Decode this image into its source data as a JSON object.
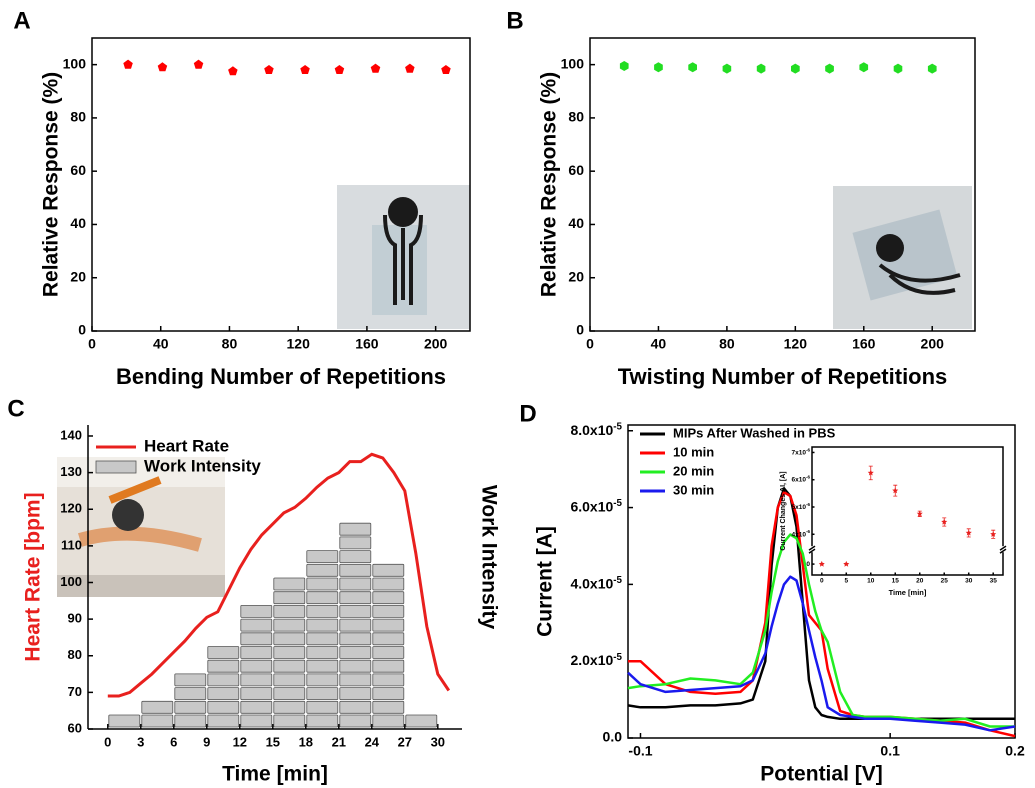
{
  "chart_data": [
    {
      "type": "scatter",
      "panel": "A",
      "xlabel": "Bending Number of Repetitions",
      "ylabel": "Relative Response (%)",
      "x": [
        21,
        41,
        62,
        82,
        103,
        124,
        144,
        165,
        185,
        206
      ],
      "values": [
        100,
        99,
        100,
        97.5,
        98,
        98,
        98,
        98.5,
        98.5,
        98
      ],
      "color": "#ff0000",
      "marker": "pentagon",
      "xlim": [
        0,
        220
      ],
      "ylim": [
        0,
        110
      ],
      "xticks": [
        0,
        40,
        80,
        120,
        160,
        200
      ],
      "yticks": [
        0,
        20,
        40,
        60,
        80,
        100
      ]
    },
    {
      "type": "scatter",
      "panel": "B",
      "xlabel": "Twisting Number of Repetitions",
      "ylabel": "Relative Response (%)",
      "x": [
        20,
        40,
        60,
        80,
        100,
        120,
        140,
        160,
        180,
        200
      ],
      "values": [
        99.5,
        99,
        99,
        98.5,
        98.5,
        98.5,
        98.5,
        99,
        98.5,
        98.5
      ],
      "color": "#22dd22",
      "marker": "hexagon",
      "xlim": [
        0,
        225
      ],
      "ylim": [
        0,
        110
      ],
      "xticks": [
        0,
        40,
        80,
        120,
        160,
        200
      ],
      "yticks": [
        0,
        20,
        40,
        60,
        80,
        100
      ]
    },
    {
      "type": "combo",
      "panel": "C",
      "xlabel": "Time [min]",
      "ylabel": "Heart Rate [bpm]",
      "y2label": "Work Intensity",
      "xlim": [
        -1.8,
        32.2
      ],
      "ylim": [
        60,
        143
      ],
      "xticks": [
        0,
        3,
        6,
        9,
        12,
        15,
        18,
        21,
        24,
        27,
        30
      ],
      "yticks": [
        60,
        70,
        80,
        90,
        100,
        110,
        120,
        130,
        140
      ],
      "legend": "upper left",
      "series": [
        {
          "name": "Heart Rate",
          "type": "line",
          "color": "#e8201e",
          "x": [
            0,
            1,
            2,
            3,
            4,
            5,
            6,
            7,
            8,
            9,
            10,
            11,
            12,
            13,
            14,
            15,
            16,
            17,
            18,
            19,
            20,
            21,
            22,
            23,
            24,
            25,
            26,
            27,
            28,
            29,
            30,
            31
          ],
          "values": [
            69,
            69,
            70,
            72.5,
            75,
            78,
            81,
            84,
            87.5,
            90.5,
            92,
            98,
            104,
            109,
            113,
            116,
            119,
            120.5,
            123,
            126,
            128.5,
            130,
            133,
            133,
            135,
            134,
            130,
            125,
            108,
            88,
            75,
            70.5
          ]
        },
        {
          "name": "Work Intensity",
          "type": "blocks",
          "color": "#c8c8c8",
          "bins": [
            0,
            3,
            6,
            9,
            12,
            15,
            18,
            21,
            24,
            27,
            30
          ],
          "values": [
            1,
            2,
            4,
            6,
            9,
            11,
            13,
            15,
            12,
            1
          ]
        }
      ]
    },
    {
      "type": "line",
      "panel": "D",
      "xlabel": "Potential [V]",
      "ylabel": "Current [A]",
      "x": [
        -0.11,
        -0.1,
        -0.08,
        -0.06,
        -0.04,
        -0.02,
        -0.01,
        0,
        0.005,
        0.01,
        0.015,
        0.02,
        0.025,
        0.03,
        0.035,
        0.04,
        0.045,
        0.05,
        0.06,
        0.07,
        0.08,
        0.1,
        0.12,
        0.14,
        0.16,
        0.18,
        0.2
      ],
      "series": [
        {
          "name": "MIPs After Washed in PBS",
          "color": "#000000",
          "values": [
            8.5e-06,
            8e-06,
            8e-06,
            8.5e-06,
            8.5e-06,
            9e-06,
            1e-05,
            2e-05,
            4.5e-05,
            6e-05,
            6.5e-05,
            6.3e-05,
            5.5e-05,
            3.5e-05,
            1.5e-05,
            8e-06,
            6e-06,
            5.5e-06,
            5e-06,
            5e-06,
            5e-06,
            5e-06,
            5e-06,
            5e-06,
            5e-06,
            5e-06,
            5e-06
          ]
        },
        {
          "name": "10 min",
          "color": "#ff0000",
          "values": [
            2e-05,
            2e-05,
            1.4e-05,
            1.2e-05,
            1.15e-05,
            1.2e-05,
            1.5e-05,
            3e-05,
            5e-05,
            6e-05,
            6.4e-05,
            6.3e-05,
            5.8e-05,
            4.5e-05,
            3.2e-05,
            3e-05,
            2.8e-05,
            1.8e-05,
            7e-06,
            6e-06,
            5.5e-06,
            5.5e-06,
            5e-06,
            4.5e-06,
            4e-06,
            2e-06,
            5e-07
          ]
        },
        {
          "name": "20 min",
          "color": "#22ee22",
          "values": [
            1.3e-05,
            1.35e-05,
            1.4e-05,
            1.55e-05,
            1.5e-05,
            1.4e-05,
            1.7e-05,
            2.8e-05,
            3.8e-05,
            4.6e-05,
            5.1e-05,
            5.3e-05,
            5.2e-05,
            4.8e-05,
            4e-05,
            3.3e-05,
            2.8e-05,
            2.5e-05,
            1.2e-05,
            6e-06,
            5.5e-06,
            5.5e-06,
            5e-06,
            4.5e-06,
            5e-06,
            3e-06,
            3e-06
          ]
        },
        {
          "name": "30 min",
          "color": "#1a1aee",
          "values": [
            1.7e-05,
            1.4e-05,
            1.2e-05,
            1.25e-05,
            1.3e-05,
            1.35e-05,
            1.5e-05,
            2.2e-05,
            2.9e-05,
            3.5e-05,
            4e-05,
            4.2e-05,
            4.1e-05,
            3.5e-05,
            2.8e-05,
            2.1e-05,
            1.5e-05,
            8e-06,
            6e-06,
            5.5e-06,
            5e-06,
            5e-06,
            4.5e-06,
            4e-06,
            3.5e-06,
            2e-06,
            3e-06
          ]
        }
      ],
      "xlim": [
        -0.11,
        0.2
      ],
      "ylim": [
        0,
        8.15e-05
      ],
      "xticks": [
        -0.1,
        0.1,
        0.2
      ],
      "yticks": [
        {
          "value": 0,
          "label": "0.0"
        },
        {
          "value": 2e-05,
          "label": "2.0x10-5"
        },
        {
          "value": 4e-05,
          "label": "4.0x10-5"
        },
        {
          "value": 6e-05,
          "label": "6.0x10-5"
        },
        {
          "value": 8e-05,
          "label": "8.0x10-5"
        }
      ],
      "legend": "upper left"
    },
    {
      "type": "scatter",
      "xlabel": "Time [min]",
      "ylabel": "Current Changes ΔI, [A]",
      "x": [
        0,
        5,
        10,
        15,
        20,
        25,
        30,
        35
      ],
      "values": [
        0,
        0,
        6.25e-06,
        5.6e-06,
        4.75e-06,
        4.45e-06,
        4.05e-06,
        4e-06
      ],
      "errors": [
        0,
        0,
        2.5e-07,
        2e-07,
        1e-07,
        1.5e-07,
        1.5e-07,
        1.5e-07
      ],
      "color": "#e8201e",
      "marker": "star",
      "xlim": [
        -2,
        37
      ],
      "ylim": [
        -4e-07,
        7.2e-06
      ],
      "ybreak": [
        4e-07,
        3.6e-06
      ],
      "xticks": [
        0,
        5,
        10,
        15,
        20,
        25,
        30,
        35
      ],
      "yticks": [
        0,
        {
          "value": 4e-06,
          "label": "4x10-6"
        },
        {
          "value": 5e-06,
          "label": "5x10-6"
        },
        {
          "value": 6e-06,
          "label": "6x10-6"
        },
        {
          "value": 7e-06,
          "label": "7x10-6"
        }
      ]
    }
  ]
}
